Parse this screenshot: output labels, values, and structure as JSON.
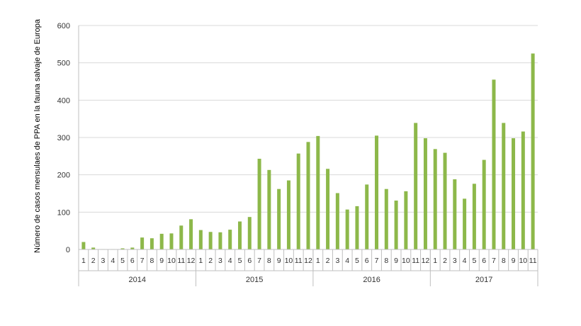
{
  "chart_data": {
    "type": "bar",
    "ylabel": "Número de casos mensulaes de PPA en la fauna salvaje de Europa",
    "ylim": [
      0,
      600
    ],
    "yticks": [
      0,
      100,
      200,
      300,
      400,
      500,
      600
    ],
    "grid": true,
    "legend": "none",
    "bar_color": "#8db84a",
    "years": [
      {
        "label": "2014",
        "months": [
          "1",
          "2",
          "3",
          "4",
          "5",
          "6",
          "7",
          "8",
          "9",
          "10",
          "11",
          "12"
        ]
      },
      {
        "label": "2015",
        "months": [
          "1",
          "2",
          "3",
          "4",
          "5",
          "6",
          "7",
          "8",
          "9",
          "10",
          "11",
          "12"
        ]
      },
      {
        "label": "2016",
        "months": [
          "1",
          "2",
          "3",
          "4",
          "5",
          "6",
          "7",
          "8",
          "9",
          "10",
          "11",
          "12"
        ]
      },
      {
        "label": "2017",
        "months": [
          "1",
          "2",
          "3",
          "4",
          "5",
          "6",
          "7",
          "8",
          "9",
          "10",
          "11"
        ]
      }
    ],
    "values": [
      20,
      5,
      1,
      1,
      3,
      5,
      32,
      30,
      42,
      43,
      64,
      81,
      52,
      47,
      46,
      53,
      75,
      87,
      243,
      213,
      162,
      185,
      257,
      288,
      304,
      216,
      151,
      107,
      116,
      174,
      305,
      162,
      131,
      156,
      339,
      298,
      269,
      259,
      188,
      136,
      176,
      240,
      455,
      339,
      298,
      316,
      525
    ]
  }
}
